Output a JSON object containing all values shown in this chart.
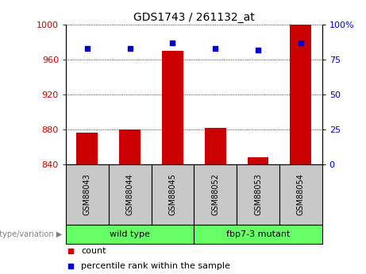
{
  "title": "GDS1743 / 261132_at",
  "samples": [
    "GSM88043",
    "GSM88044",
    "GSM88045",
    "GSM88052",
    "GSM88053",
    "GSM88054"
  ],
  "groups": [
    {
      "name": "wild type",
      "indices": [
        0,
        1,
        2
      ]
    },
    {
      "name": "fbp7-3 mutant",
      "indices": [
        3,
        4,
        5
      ]
    }
  ],
  "bar_values": [
    876,
    880,
    970,
    882,
    848,
    1000
  ],
  "bar_base": 840,
  "percentile_values": [
    83,
    83,
    87,
    83,
    82,
    87
  ],
  "ylim_left": [
    840,
    1000
  ],
  "ylim_right": [
    0,
    100
  ],
  "yticks_left": [
    840,
    880,
    920,
    960,
    1000
  ],
  "yticks_right": [
    0,
    25,
    50,
    75,
    100
  ],
  "bar_color": "#CC0000",
  "dot_color": "#0000CC",
  "grid_color": "#000000",
  "label_color_left": "#CC0000",
  "label_color_right": "#0000CC",
  "group_label": "genotype/variation",
  "legend_count": "count",
  "legend_percentile": "percentile rank within the sample",
  "tick_label_bg": "#C8C8C8",
  "group_color": "#66FF66"
}
